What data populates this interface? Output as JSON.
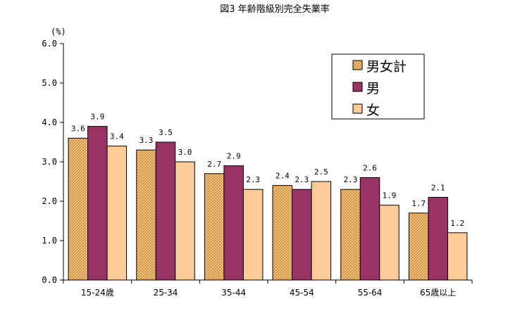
{
  "chart_data": {
    "type": "bar",
    "title": "図3  年齢階級別完全失業率",
    "ylabel": "(%)",
    "xlabel": "",
    "ylim": [
      0,
      6
    ],
    "yticks": [
      "0.0",
      "1.0",
      "2.0",
      "3.0",
      "4.0",
      "5.0",
      "6.0"
    ],
    "categories": [
      "15-24歳",
      "25-34",
      "35-44",
      "45-54",
      "55-64",
      "65歳以上"
    ],
    "series": [
      {
        "name": "男女計",
        "values": [
          3.6,
          3.3,
          2.7,
          2.4,
          2.3,
          1.7
        ],
        "labels": [
          "3.6",
          "3.3",
          "2.7",
          "2.4",
          "2.3",
          "1.7"
        ],
        "color": "#f4b26a",
        "pattern": "hatch"
      },
      {
        "name": "男",
        "values": [
          3.9,
          3.5,
          2.9,
          2.3,
          2.6,
          2.1
        ],
        "labels": [
          "3.9",
          "3.5",
          "2.9",
          "2.3",
          "2.6",
          "2.1"
        ],
        "color": "#993366",
        "pattern": "solid"
      },
      {
        "name": "女",
        "values": [
          3.4,
          3.0,
          2.3,
          2.5,
          1.9,
          1.2
        ],
        "labels": [
          "3.4",
          "3.0",
          "2.3",
          "2.5",
          "1.9",
          "1.2"
        ],
        "color": "#ffcc99",
        "pattern": "solid"
      }
    ],
    "legend_position": "top-right",
    "grid": false
  }
}
